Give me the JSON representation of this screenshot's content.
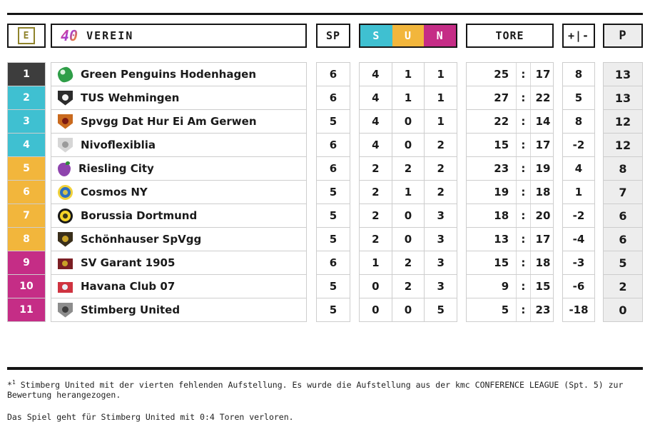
{
  "header": {
    "e_badge": "E",
    "logo_text": "40",
    "verein_label": "VEREIN",
    "sp_label": "SP",
    "s_label": "S",
    "u_label": "U",
    "n_label": "N",
    "tore_label": "TORE",
    "diff_label": "+|-",
    "points_label": "P"
  },
  "colors": {
    "dark": "#3d3d3d",
    "cyan": "#3fc0d1",
    "amber": "#f2b63c",
    "magenta": "#c52d86"
  },
  "rows": [
    {
      "pos": "1",
      "pos_color": "dark",
      "club": "Green Penguins Hodenhagen",
      "icon": {
        "name": "green-penguins-crest-icon",
        "shape": "mascot",
        "c1": "#2f9e48",
        "c2": "#d8f0da"
      },
      "sp": "6",
      "s": "4",
      "u": "1",
      "n": "1",
      "gf": "25",
      "ga": "17",
      "diff": "8",
      "pts": "13"
    },
    {
      "pos": "2",
      "pos_color": "cyan",
      "club": "TUS Wehmingen",
      "icon": {
        "name": "tus-wehmingen-crest-icon",
        "shape": "shield",
        "c1": "#2b2b2b",
        "c2": "#f2f2f2"
      },
      "sp": "6",
      "s": "4",
      "u": "1",
      "n": "1",
      "gf": "27",
      "ga": "22",
      "diff": "5",
      "pts": "13"
    },
    {
      "pos": "3",
      "pos_color": "cyan",
      "club": "Spvgg Dat Hur Ei Am Gerwen",
      "icon": {
        "name": "spvgg-gerwen-crest-icon",
        "shape": "shield",
        "c1": "#c96a1e",
        "c2": "#7c1a12"
      },
      "sp": "5",
      "s": "4",
      "u": "0",
      "n": "1",
      "gf": "22",
      "ga": "14",
      "diff": "8",
      "pts": "12"
    },
    {
      "pos": "4",
      "pos_color": "cyan",
      "club": "Nivoflexiblia",
      "icon": {
        "name": "nivoflexiblia-crest-icon",
        "shape": "shield",
        "c1": "#d6d6d6",
        "c2": "#9a9a9a"
      },
      "sp": "6",
      "s": "4",
      "u": "0",
      "n": "2",
      "gf": "15",
      "ga": "17",
      "diff": "-2",
      "pts": "12"
    },
    {
      "pos": "5",
      "pos_color": "amber",
      "club": "Riesling City",
      "icon": {
        "name": "riesling-city-grapes-icon",
        "shape": "grapes",
        "c1": "#8e44ad",
        "c2": "#2e8b3a"
      },
      "sp": "6",
      "s": "2",
      "u": "2",
      "n": "2",
      "gf": "23",
      "ga": "19",
      "diff": "4",
      "pts": "8"
    },
    {
      "pos": "6",
      "pos_color": "amber",
      "club": "Cosmos NY",
      "icon": {
        "name": "cosmos-ny-crest-icon",
        "shape": "circle",
        "c1": "#2b6fc2",
        "c2": "#f0d13a"
      },
      "sp": "5",
      "s": "2",
      "u": "1",
      "n": "2",
      "gf": "19",
      "ga": "18",
      "diff": "1",
      "pts": "7"
    },
    {
      "pos": "7",
      "pos_color": "amber",
      "club": "Borussia Dortmund",
      "icon": {
        "name": "borussia-dortmund-crest-icon",
        "shape": "circle",
        "c1": "#f5d327",
        "c2": "#181818"
      },
      "sp": "5",
      "s": "2",
      "u": "0",
      "n": "3",
      "gf": "18",
      "ga": "20",
      "diff": "-2",
      "pts": "6"
    },
    {
      "pos": "8",
      "pos_color": "amber",
      "club": "Schönhauser SpVgg",
      "icon": {
        "name": "schoenhauser-spvgg-crest-icon",
        "shape": "shield",
        "c1": "#3a2f1b",
        "c2": "#c9a227"
      },
      "sp": "5",
      "s": "2",
      "u": "0",
      "n": "3",
      "gf": "13",
      "ga": "17",
      "diff": "-4",
      "pts": "6"
    },
    {
      "pos": "9",
      "pos_color": "magenta",
      "club": "SV Garant 1905",
      "icon": {
        "name": "sv-garant-flag-icon",
        "shape": "flag",
        "c1": "#7b1f24",
        "c2": "#c9a227"
      },
      "sp": "6",
      "s": "1",
      "u": "2",
      "n": "3",
      "gf": "15",
      "ga": "18",
      "diff": "-3",
      "pts": "5"
    },
    {
      "pos": "10",
      "pos_color": "magenta",
      "club": "Havana Club 07",
      "icon": {
        "name": "havana-club-flag-icon",
        "shape": "flag",
        "c1": "#cf3340",
        "c2": "#e8eef5"
      },
      "sp": "5",
      "s": "0",
      "u": "2",
      "n": "3",
      "gf": "9",
      "ga": "15",
      "diff": "-6",
      "pts": "2"
    },
    {
      "pos": "11",
      "pos_color": "magenta",
      "club": "Stimberg United",
      "icon": {
        "name": "stimberg-united-crest-icon",
        "shape": "shield",
        "c1": "#8d8d8d",
        "c2": "#3c3c3c"
      },
      "sp": "5",
      "s": "0",
      "u": "0",
      "n": "5",
      "gf": "5",
      "ga": "23",
      "diff": "-18",
      "pts": "0"
    }
  ],
  "footer": {
    "note1_marker": "*",
    "note1_sup": "1",
    "note1_text": " Stimberg United mit der vierten fehlenden Aufstellung. Es wurde die Aufstellung aus der kmc CONFERENCE LEAGUE (Spt. 5) zur Bewertung herangezogen.",
    "note2_text": "Das Spiel geht für Stimberg United mit 0:4 Toren verloren."
  }
}
